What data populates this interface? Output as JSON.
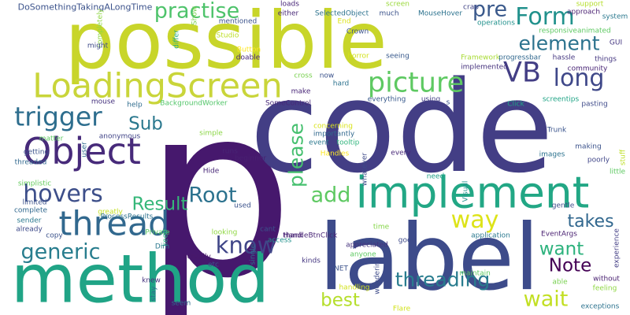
{
  "words": [
    {
      "text": "p",
      "color": "#46186d"
    },
    {
      "text": "code",
      "color": "#433e85"
    },
    {
      "text": "possible",
      "color": "#c8d52a"
    },
    {
      "text": "label",
      "color": "#3d4b8a"
    },
    {
      "text": "method",
      "color": "#20a486"
    },
    {
      "text": "implement",
      "color": "#22a785"
    },
    {
      "text": "LoadingScreen",
      "color": "#c9d53a"
    },
    {
      "text": "Object",
      "color": "#472a7a"
    },
    {
      "text": "thread",
      "color": "#31688e"
    },
    {
      "text": "Form",
      "color": "#21918c"
    },
    {
      "text": "element",
      "color": "#2c738e"
    },
    {
      "text": "practise",
      "color": "#4ec36b"
    },
    {
      "text": "pre",
      "color": "#3b5a8c"
    },
    {
      "text": "VB",
      "color": "#433e85"
    },
    {
      "text": "long",
      "color": "#3f4889"
    },
    {
      "text": "picture",
      "color": "#5ec962"
    },
    {
      "text": "trigger",
      "color": "#2e6e8e"
    },
    {
      "text": "hovers",
      "color": "#3d4f8a"
    },
    {
      "text": "Sub",
      "color": "#2a788e"
    },
    {
      "text": "add",
      "color": "#5ec962"
    },
    {
      "text": "Result",
      "color": "#35b779"
    },
    {
      "text": "Root",
      "color": "#2c728e"
    },
    {
      "text": "know",
      "color": "#404688"
    },
    {
      "text": "please",
      "color": "#46c06f"
    },
    {
      "text": "generic",
      "color": "#287d8e"
    },
    {
      "text": "way",
      "color": "#dde318"
    },
    {
      "text": "takes",
      "color": "#31678e"
    },
    {
      "text": "want",
      "color": "#2db27d"
    },
    {
      "text": "Note",
      "color": "#440154"
    },
    {
      "text": "threading",
      "color": "#287c8e"
    },
    {
      "text": "wait",
      "color": "#c2df23"
    },
    {
      "text": "best",
      "color": "#b5de2b"
    },
    {
      "text": "DoSomethingTakingALongTime",
      "color": "#3b528b"
    },
    {
      "text": "Show",
      "color": "#7ad151"
    },
    {
      "text": "completely",
      "color": "#8fd744"
    },
    {
      "text": "mentioned",
      "color": "#3b528b"
    },
    {
      "text": "loads",
      "color": "#482677"
    },
    {
      "text": "either",
      "color": "#482878"
    },
    {
      "text": "SelectedObject",
      "color": "#2c728e"
    },
    {
      "text": "screen",
      "color": "#9bd93c"
    },
    {
      "text": "MouseHover",
      "color": "#2c728e"
    },
    {
      "text": "crap",
      "color": "#414487"
    },
    {
      "text": "support",
      "color": "#b5de2b"
    },
    {
      "text": "approach",
      "color": "#481f70"
    },
    {
      "text": "system",
      "color": "#2a788e"
    },
    {
      "text": "End",
      "color": "#dde318"
    },
    {
      "text": "much",
      "color": "#3b528b"
    },
    {
      "text": "Crown",
      "color": "#3b528b"
    },
    {
      "text": "operations",
      "color": "#21918c"
    },
    {
      "text": "responsiveanimated",
      "color": "#5ec962"
    },
    {
      "text": "GUI",
      "color": "#453781"
    },
    {
      "text": "differ",
      "color": "#27ad81"
    },
    {
      "text": "Studio",
      "color": "#bddf26"
    },
    {
      "text": "might",
      "color": "#3e4a89"
    },
    {
      "text": "Button",
      "color": "#fde725"
    },
    {
      "text": "doable",
      "color": "#482677"
    },
    {
      "text": "horror",
      "color": "#d2e21b"
    },
    {
      "text": "seeing",
      "color": "#38598c"
    },
    {
      "text": "Framework",
      "color": "#a8db34"
    },
    {
      "text": "progressbar",
      "color": "#31688e"
    },
    {
      "text": "hassle",
      "color": "#453781"
    },
    {
      "text": "things",
      "color": "#453781"
    },
    {
      "text": "community",
      "color": "#482475"
    },
    {
      "text": "cross",
      "color": "#7ad151"
    },
    {
      "text": "now",
      "color": "#3b528b"
    },
    {
      "text": "hard",
      "color": "#2c728e"
    },
    {
      "text": "implemented",
      "color": "#46337e"
    },
    {
      "text": "make",
      "color": "#482677"
    },
    {
      "text": "mouse",
      "color": "#46337e"
    },
    {
      "text": "help",
      "color": "#2f6c8e"
    },
    {
      "text": "BackgroundWorker",
      "color": "#52c569"
    },
    {
      "text": "SomeControl",
      "color": "#482878"
    },
    {
      "text": "everything",
      "color": "#38598c"
    },
    {
      "text": "using",
      "color": "#433e85"
    },
    {
      "text": "s",
      "color": "#3b528b"
    },
    {
      "text": "Click",
      "color": "#20a486"
    },
    {
      "text": "screentips",
      "color": "#20a486"
    },
    {
      "text": "pasting",
      "color": "#3e4a89"
    },
    {
      "text": "anonymous",
      "color": "#414487"
    },
    {
      "text": "concerning",
      "color": "#d8e219"
    },
    {
      "text": "importantly",
      "color": "#31688e"
    },
    {
      "text": "Trunk",
      "color": "#3a548c"
    },
    {
      "text": "matter",
      "color": "#5ec962"
    },
    {
      "text": "simple",
      "color": "#8bd646"
    },
    {
      "text": "event",
      "color": "#2a788e"
    },
    {
      "text": "tooltip",
      "color": "#2fb47c"
    },
    {
      "text": "making",
      "color": "#3b528b"
    },
    {
      "text": "user",
      "color": "#2f6c8e"
    },
    {
      "text": "runs",
      "color": "#482475"
    },
    {
      "text": "every",
      "color": "#482878"
    },
    {
      "text": "images",
      "color": "#2c728e"
    },
    {
      "text": "getting",
      "color": "#3b528b"
    },
    {
      "text": "beginner",
      "color": "#482071"
    },
    {
      "text": "Handles",
      "color": "#fde725"
    },
    {
      "text": "whatever",
      "color": "#3e4a89"
    },
    {
      "text": "poorly",
      "color": "#404688"
    },
    {
      "text": "stuff",
      "color": "#bddf26"
    },
    {
      "text": "threaded",
      "color": "#31688e"
    },
    {
      "text": "Hide",
      "color": "#482878"
    },
    {
      "text": "need",
      "color": "#1fa187"
    },
    {
      "text": "little",
      "color": "#5ec962"
    },
    {
      "text": "simplistic",
      "color": "#65cb5e"
    },
    {
      "text": "limited",
      "color": "#3b528b"
    },
    {
      "text": "Visual",
      "color": "#21918c"
    },
    {
      "text": "complete",
      "color": "#31688e"
    },
    {
      "text": "greatly",
      "color": "#c2df23"
    },
    {
      "text": "used",
      "color": "#3b528b"
    },
    {
      "text": "cant",
      "color": "#3b528b"
    },
    {
      "text": "thank",
      "color": "#482475"
    },
    {
      "text": "HandleBtnClick",
      "color": "#482475"
    },
    {
      "text": "gentle",
      "color": "#3e4a89"
    },
    {
      "text": "sender",
      "color": "#2a788e"
    },
    {
      "text": "already",
      "color": "#3e4a89"
    },
    {
      "text": "ProcessResults",
      "color": "#2c728e"
    },
    {
      "text": "Private",
      "color": "#5ec962"
    },
    {
      "text": "access",
      "color": "#21918c"
    },
    {
      "text": "good",
      "color": "#3e4a89"
    },
    {
      "text": "application",
      "color": "#2a788e"
    },
    {
      "text": "keep",
      "color": "#27ad81"
    },
    {
      "text": "looking",
      "color": "#90d743"
    },
    {
      "text": "time",
      "color": "#86d549"
    },
    {
      "text": "appreciated",
      "color": "#46337e"
    },
    {
      "text": "EventArgs",
      "color": "#481f70"
    },
    {
      "text": "experience",
      "color": "#433e85"
    },
    {
      "text": "copy",
      "color": "#3b528b"
    },
    {
      "text": "Dim",
      "color": "#2a788e"
    },
    {
      "text": "actually",
      "color": "#48186a"
    },
    {
      "text": "single",
      "color": "#2c728e"
    },
    {
      "text": "anyone",
      "color": "#5ec962"
    },
    {
      "text": "kinds",
      "color": "#453781"
    },
    {
      "text": "NET",
      "color": "#3b528b"
    },
    {
      "text": "etc",
      "color": "#3b528b"
    },
    {
      "text": "knew",
      "color": "#46337e"
    },
    {
      "text": "wondering",
      "color": "#3e4a89"
    },
    {
      "text": "maintain",
      "color": "#5ec962"
    },
    {
      "text": "able",
      "color": "#7ad151"
    },
    {
      "text": "without",
      "color": "#481f70"
    },
    {
      "text": "stay",
      "color": "#2f6c8e"
    },
    {
      "text": "handling",
      "color": "#d2e21b"
    },
    {
      "text": "feeling",
      "color": "#8fd744"
    },
    {
      "text": "seem",
      "color": "#31688e"
    },
    {
      "text": "Flare",
      "color": "#d2e21b"
    },
    {
      "text": "exceptions",
      "color": "#2c728e"
    }
  ]
}
